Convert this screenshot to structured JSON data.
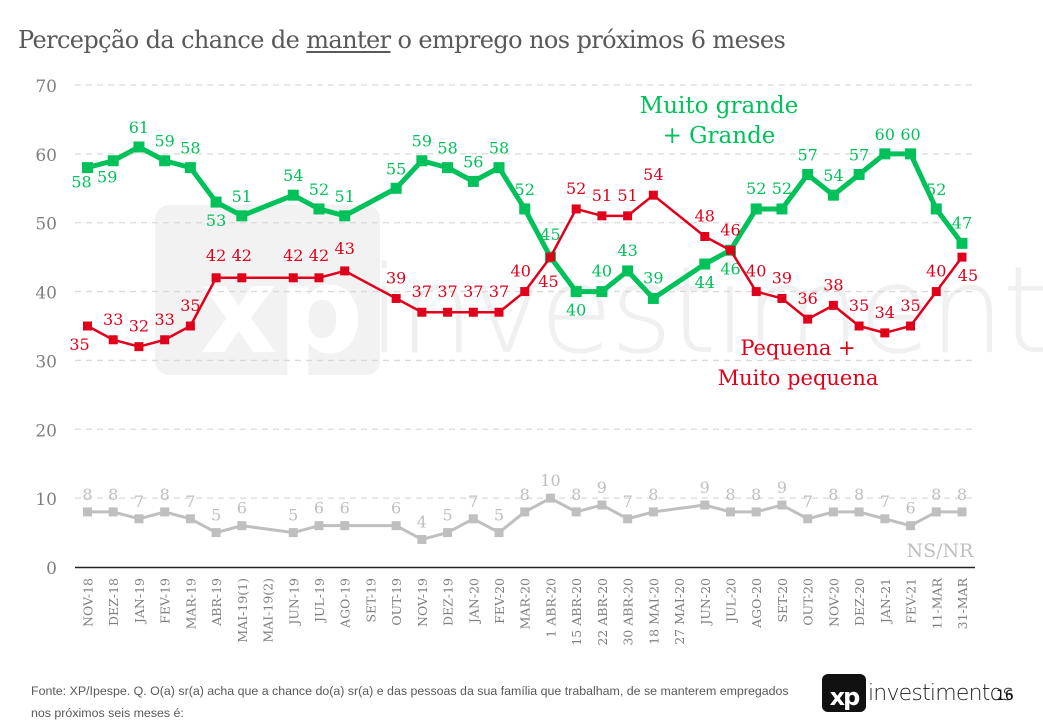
{
  "page": {
    "title_before": "Percepção da chance de ",
    "title_underlined": "manter",
    "title_after": " o emprego nos próximos 6 meses",
    "footer": "Fonte: XP/Ipespe. Q. O(a) sr(a) acha que a chance do(a) sr(a) e das pessoas da sua família que trabalham, de se manterem empregados nos próximos seis meses é:",
    "logo_mark": "xp",
    "logo_text": "investimentos",
    "page_number": "16",
    "watermark": "xp investimentos"
  },
  "chart_data": {
    "type": "line",
    "title": "Percepção da chance de manter o emprego nos próximos 6 meses",
    "xlabel": "",
    "ylabel": "",
    "ylim": [
      0,
      70
    ],
    "yticks": [
      0,
      10,
      20,
      30,
      40,
      50,
      60,
      70
    ],
    "grid": true,
    "categories": [
      "NOV-18",
      "DEZ-18",
      "JAN-19",
      "FEV-19",
      "MAR-19",
      "ABR-19",
      "MAI-19(1)",
      "MAI-19(2)",
      "JUN-19",
      "JUL-19",
      "AGO-19",
      "SET-19",
      "OUT-19",
      "NOV-19",
      "DEZ-19",
      "JAN-20",
      "FEV-20",
      "MAR-20",
      "1 ABR-20",
      "15 ABR-20",
      "22 ABR-20",
      "30 ABR-20",
      "18 MAI-20",
      "27 MAI-20",
      "JUN-20",
      "JUL-20",
      "AGO-20",
      "SET-20",
      "OUT-20",
      "NOV-20",
      "DEZ-20",
      "JAN-21",
      "FEV-21",
      "11-MAR",
      "31-MAR"
    ],
    "series": [
      {
        "name": "Muito grande + Grande",
        "legend_lines": [
          "Muito grande",
          "+ Grande"
        ],
        "color": "#00c15a",
        "values": [
          58,
          59,
          61,
          59,
          58,
          53,
          51,
          null,
          54,
          52,
          51,
          null,
          55,
          59,
          58,
          56,
          58,
          52,
          45,
          40,
          40,
          43,
          39,
          null,
          44,
          46,
          52,
          52,
          57,
          54,
          57,
          60,
          60,
          52,
          47
        ]
      },
      {
        "name": "Pequena + Muito pequena",
        "legend_lines": [
          "Pequena +",
          "Muito pequena"
        ],
        "color": "#e0001b",
        "values": [
          35,
          33,
          32,
          33,
          35,
          42,
          42,
          null,
          42,
          42,
          43,
          null,
          39,
          37,
          37,
          37,
          37,
          40,
          45,
          52,
          51,
          51,
          54,
          null,
          48,
          46,
          40,
          39,
          36,
          38,
          35,
          34,
          35,
          40,
          45
        ]
      },
      {
        "name": "NS/NR",
        "legend_lines": [
          "NS/NR"
        ],
        "color": "#bfbfbf",
        "values": [
          8,
          8,
          7,
          8,
          7,
          5,
          6,
          null,
          5,
          6,
          6,
          null,
          6,
          4,
          5,
          7,
          5,
          8,
          10,
          8,
          9,
          7,
          8,
          null,
          9,
          8,
          8,
          9,
          7,
          8,
          8,
          7,
          6,
          8,
          8
        ]
      }
    ]
  }
}
